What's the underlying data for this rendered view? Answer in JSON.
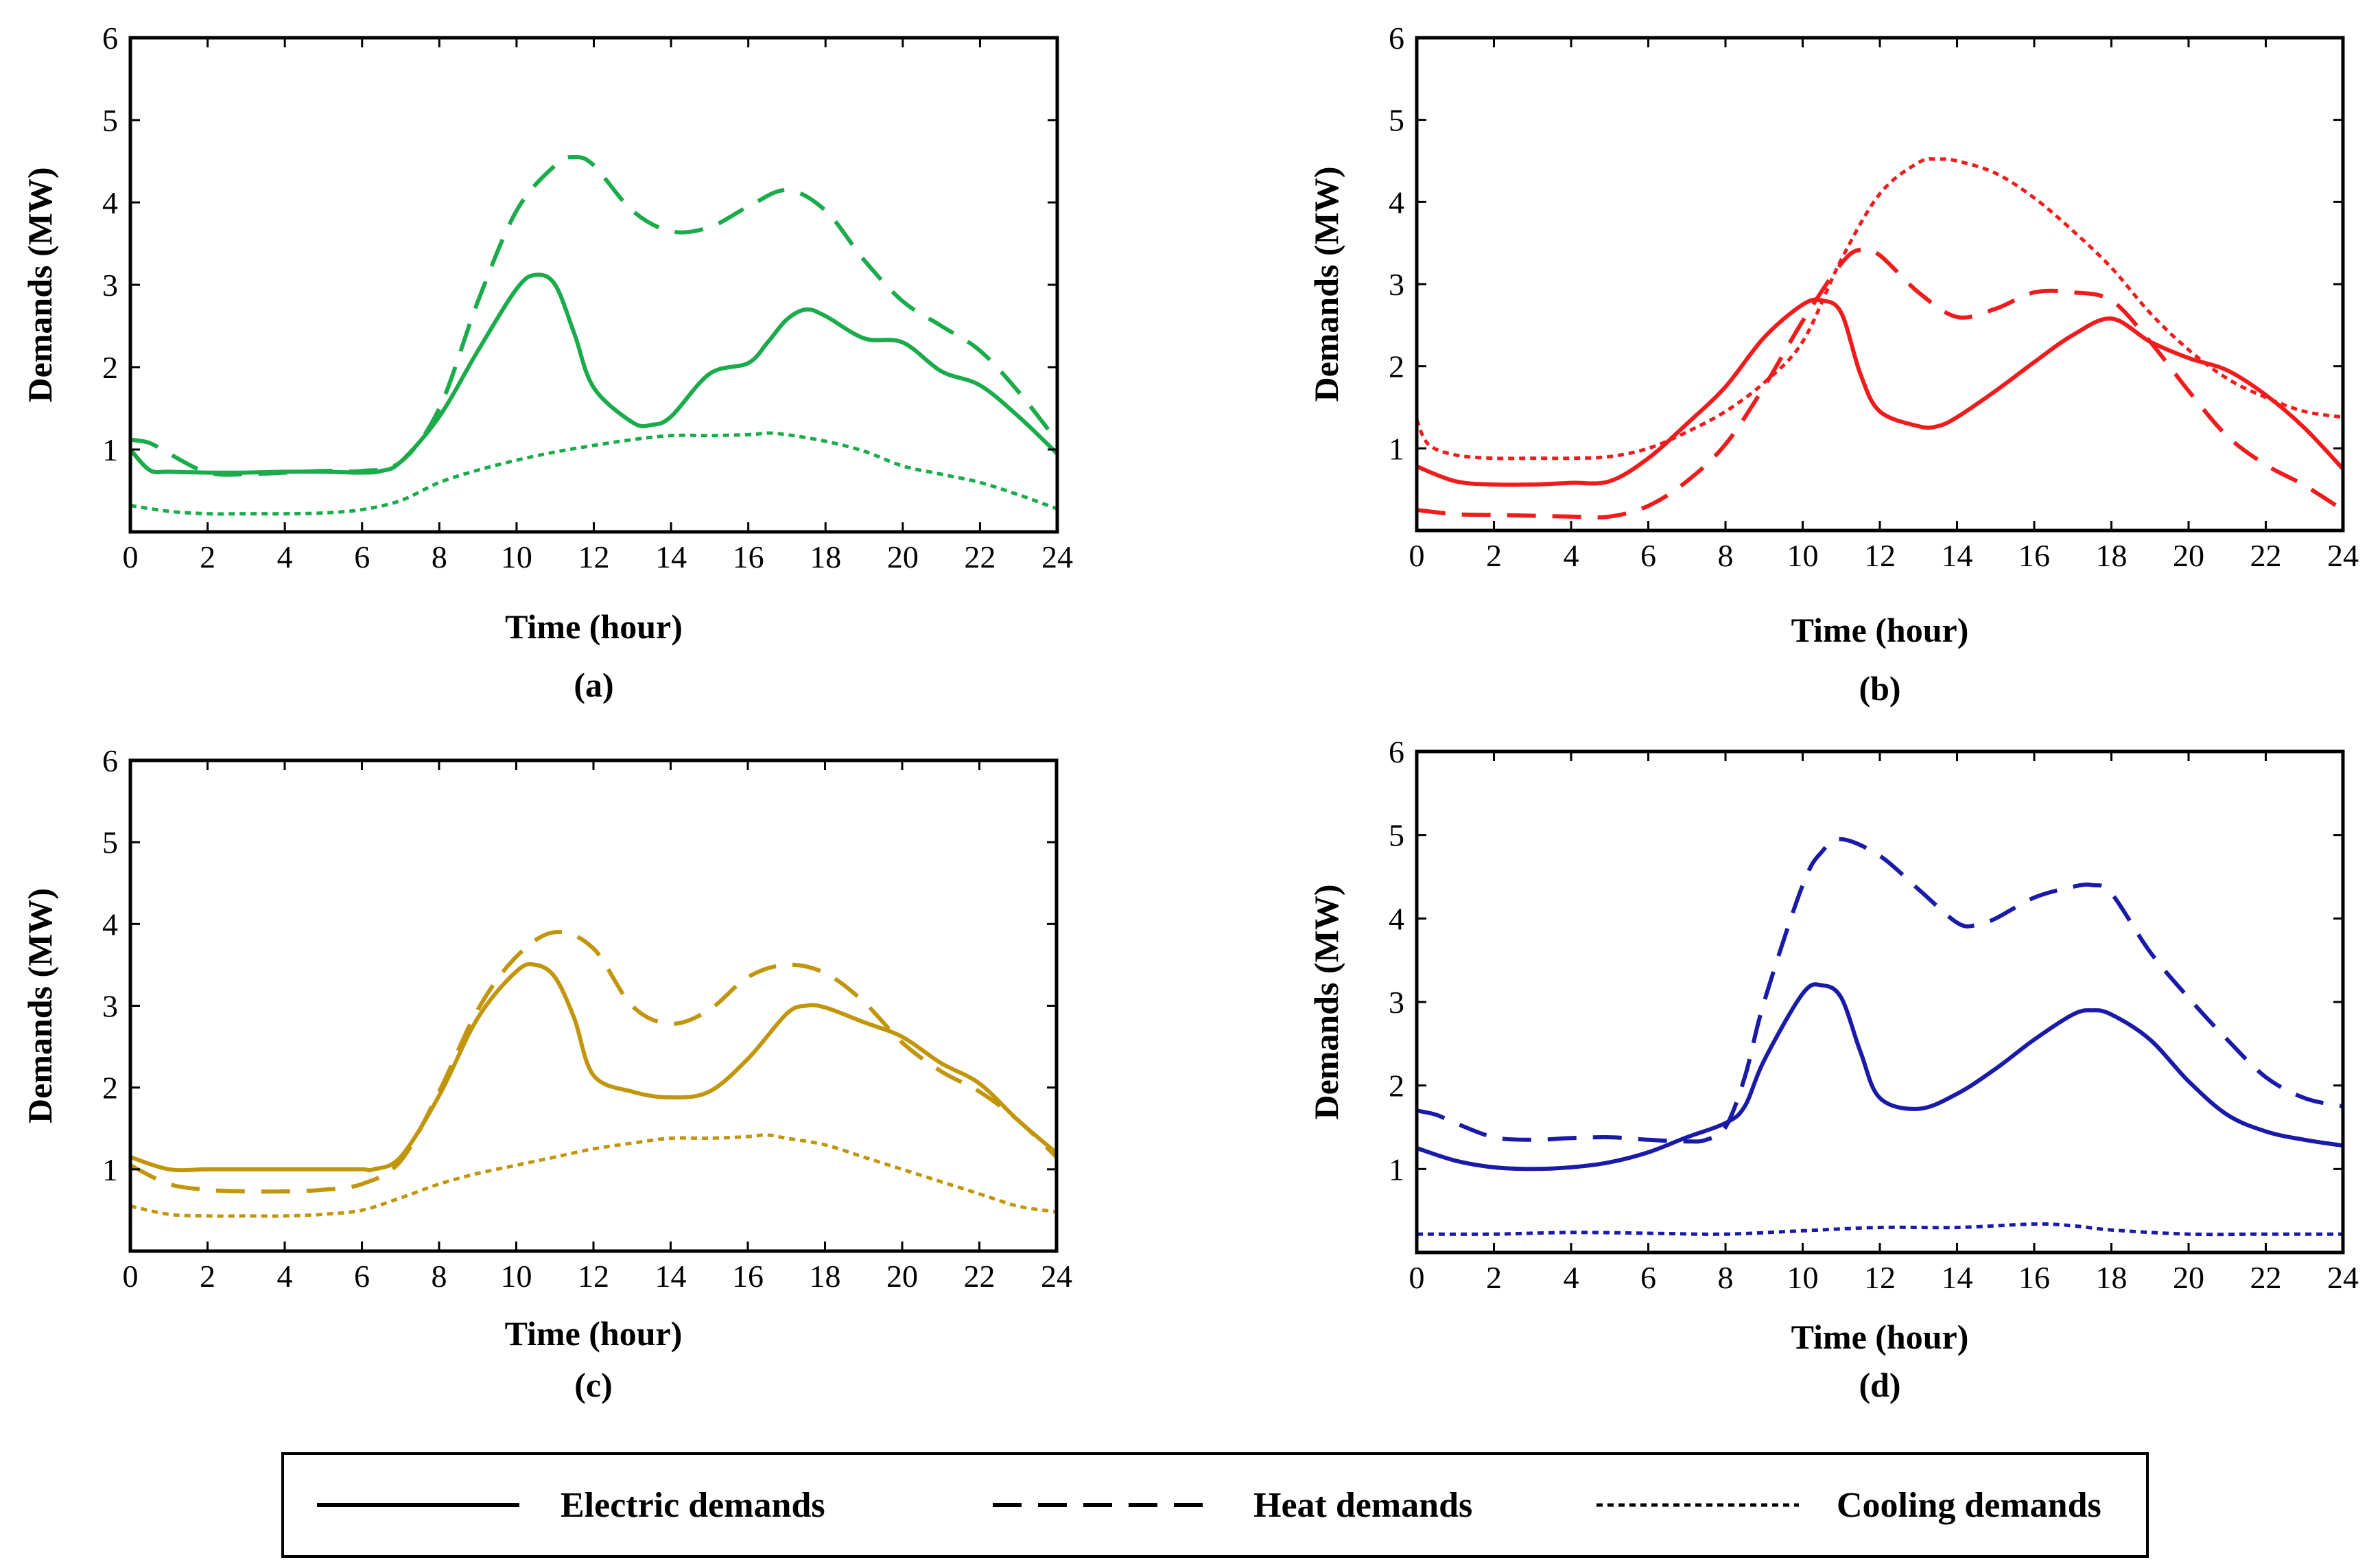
{
  "chart_data": [
    {
      "type": "line",
      "panel_label": "(a)",
      "xlabel": "Time (hour)",
      "ylabel": "Demands (MW)",
      "xlim": [
        0,
        24
      ],
      "ylim": [
        0,
        6
      ],
      "xticks": [
        "0",
        "2",
        "4",
        "6",
        "8",
        "10",
        "12",
        "14",
        "16",
        "18",
        "20",
        "22",
        "24"
      ],
      "yticks": [
        "1",
        "2",
        "3",
        "4",
        "5",
        "6"
      ],
      "color": "#1aab4b",
      "series": [
        {
          "name": "Electric demands",
          "style": "solid",
          "x": [
            0,
            0.5,
            1,
            2,
            3,
            4,
            5,
            6,
            6.5,
            7,
            8,
            9,
            10,
            10.5,
            11,
            11.5,
            12,
            13,
            13.5,
            14,
            15,
            16,
            16.5,
            17,
            17.5,
            18,
            19,
            20,
            21,
            22,
            23,
            24
          ],
          "y": [
            1.0,
            0.75,
            0.73,
            0.72,
            0.72,
            0.73,
            0.73,
            0.72,
            0.74,
            0.85,
            1.4,
            2.2,
            2.95,
            3.12,
            3.0,
            2.4,
            1.75,
            1.33,
            1.3,
            1.4,
            1.92,
            2.05,
            2.3,
            2.58,
            2.7,
            2.62,
            2.35,
            2.3,
            1.95,
            1.78,
            1.4,
            0.95
          ]
        },
        {
          "name": "Heat demands",
          "style": "dashed",
          "x": [
            0,
            0.5,
            1,
            2,
            3,
            4,
            5,
            6,
            7,
            8,
            9,
            10,
            11,
            11.5,
            12,
            13,
            14,
            15,
            16,
            17,
            18,
            19,
            20,
            21,
            22,
            23,
            24
          ],
          "y": [
            1.12,
            1.08,
            0.95,
            0.72,
            0.7,
            0.72,
            0.74,
            0.74,
            0.85,
            1.5,
            2.8,
            3.9,
            4.45,
            4.55,
            4.45,
            3.9,
            3.65,
            3.7,
            3.95,
            4.15,
            3.9,
            3.3,
            2.8,
            2.5,
            2.2,
            1.7,
            1.1
          ]
        },
        {
          "name": "Cooling demands",
          "style": "dotted",
          "x": [
            0,
            1,
            2,
            3,
            4,
            5,
            6,
            7,
            8,
            9,
            10,
            11,
            12,
            13,
            14,
            15,
            16,
            16.5,
            17,
            18,
            19,
            20,
            21,
            22,
            23,
            24
          ],
          "y": [
            0.32,
            0.25,
            0.22,
            0.22,
            0.22,
            0.23,
            0.27,
            0.38,
            0.6,
            0.75,
            0.87,
            0.97,
            1.05,
            1.12,
            1.17,
            1.17,
            1.18,
            1.2,
            1.18,
            1.1,
            0.98,
            0.8,
            0.7,
            0.6,
            0.45,
            0.28
          ]
        }
      ]
    },
    {
      "type": "line",
      "panel_label": "(b)",
      "xlabel": "Time (hour)",
      "ylabel": "Demands (MW)",
      "xlim": [
        0,
        24
      ],
      "ylim": [
        0,
        6
      ],
      "xticks": [
        "0",
        "2",
        "4",
        "6",
        "8",
        "10",
        "12",
        "14",
        "16",
        "18",
        "20",
        "22",
        "24"
      ],
      "yticks": [
        "1",
        "2",
        "3",
        "4",
        "5",
        "6"
      ],
      "color": "#ee1c1c",
      "series": [
        {
          "name": "Electric demands",
          "style": "solid",
          "x": [
            0,
            1,
            2,
            3,
            4,
            5,
            6,
            7,
            8,
            9,
            10,
            10.5,
            11,
            11.5,
            12,
            13,
            13.5,
            14,
            15,
            16,
            17,
            18,
            19,
            20,
            21,
            22,
            23,
            24
          ],
          "y": [
            0.78,
            0.6,
            0.56,
            0.56,
            0.58,
            0.6,
            0.88,
            1.3,
            1.75,
            2.35,
            2.75,
            2.8,
            2.65,
            1.9,
            1.45,
            1.27,
            1.27,
            1.38,
            1.7,
            2.05,
            2.38,
            2.58,
            2.3,
            2.1,
            1.95,
            1.65,
            1.25,
            0.75
          ]
        },
        {
          "name": "Heat demands",
          "style": "dashed",
          "x": [
            0,
            1,
            2,
            3,
            4,
            5,
            6,
            7,
            8,
            9,
            10,
            11,
            11.5,
            12,
            13,
            14,
            15,
            16,
            17,
            18,
            19,
            20,
            21,
            22,
            23,
            24
          ],
          "y": [
            0.25,
            0.2,
            0.19,
            0.18,
            0.17,
            0.17,
            0.3,
            0.6,
            1.05,
            1.75,
            2.55,
            3.25,
            3.42,
            3.35,
            2.9,
            2.6,
            2.7,
            2.9,
            2.9,
            2.8,
            2.3,
            1.7,
            1.15,
            0.8,
            0.55,
            0.25
          ]
        },
        {
          "name": "Cooling demands",
          "style": "dotted",
          "x": [
            0,
            0.3,
            1,
            2,
            3,
            4,
            5,
            6,
            7,
            8,
            9,
            10,
            11,
            12,
            13,
            13.5,
            14,
            15,
            16,
            17,
            18,
            19,
            20,
            21,
            22,
            23,
            24
          ],
          "y": [
            1.35,
            1.05,
            0.92,
            0.88,
            0.88,
            0.88,
            0.9,
            1.0,
            1.2,
            1.45,
            1.8,
            2.3,
            3.3,
            4.1,
            4.48,
            4.52,
            4.5,
            4.35,
            4.05,
            3.65,
            3.2,
            2.65,
            2.2,
            1.85,
            1.62,
            1.45,
            1.38
          ]
        }
      ]
    },
    {
      "type": "line",
      "panel_label": "(c)",
      "xlabel": "Time (hour)",
      "ylabel": "Demands (MW)",
      "xlim": [
        0,
        24
      ],
      "ylim": [
        0,
        6
      ],
      "xticks": [
        "0",
        "2",
        "4",
        "6",
        "8",
        "10",
        "12",
        "14",
        "16",
        "18",
        "20",
        "22",
        "24"
      ],
      "yticks": [
        "1",
        "2",
        "3",
        "4",
        "5",
        "6"
      ],
      "color": "#c2960c",
      "series": [
        {
          "name": "Electric demands",
          "style": "solid",
          "x": [
            0,
            1,
            2,
            3,
            4,
            5,
            6,
            6.3,
            7,
            8,
            9,
            10,
            10.5,
            11,
            11.5,
            12,
            13,
            14,
            15,
            16,
            17,
            17.5,
            18,
            19,
            20,
            21,
            22,
            23,
            24
          ],
          "y": [
            1.15,
            1.0,
            1.0,
            1.0,
            1.0,
            1.0,
            1.0,
            1.0,
            1.15,
            1.9,
            2.85,
            3.42,
            3.5,
            3.35,
            2.85,
            2.15,
            1.95,
            1.88,
            1.95,
            2.35,
            2.9,
            3.0,
            2.98,
            2.8,
            2.62,
            2.3,
            2.05,
            1.6,
            1.2
          ]
        },
        {
          "name": "Heat demands",
          "style": "dashed",
          "x": [
            0,
            1,
            2,
            3,
            4,
            5,
            6,
            7,
            8,
            9,
            10,
            11,
            12,
            13,
            14,
            15,
            16,
            17,
            18,
            19,
            20,
            21,
            22,
            23,
            24
          ],
          "y": [
            1.05,
            0.82,
            0.75,
            0.73,
            0.73,
            0.75,
            0.82,
            1.1,
            1.95,
            2.95,
            3.6,
            3.9,
            3.7,
            3.0,
            2.78,
            2.95,
            3.35,
            3.5,
            3.4,
            3.05,
            2.55,
            2.2,
            1.95,
            1.6,
            1.15
          ]
        },
        {
          "name": "Cooling demands",
          "style": "dotted",
          "x": [
            0,
            1,
            2,
            3,
            4,
            5,
            6,
            7,
            8,
            9,
            10,
            11,
            12,
            13,
            14,
            15,
            16,
            16.5,
            17,
            18,
            19,
            20,
            21,
            22,
            23,
            24
          ],
          "y": [
            0.55,
            0.45,
            0.43,
            0.43,
            0.43,
            0.45,
            0.5,
            0.65,
            0.82,
            0.95,
            1.05,
            1.15,
            1.25,
            1.32,
            1.38,
            1.38,
            1.4,
            1.42,
            1.38,
            1.3,
            1.15,
            1.0,
            0.85,
            0.7,
            0.55,
            0.48
          ]
        }
      ]
    },
    {
      "type": "line",
      "panel_label": "(d)",
      "xlabel": "Time (hour)",
      "ylabel": "Demands (MW)",
      "xlim": [
        0,
        24
      ],
      "ylim": [
        0,
        6
      ],
      "xticks": [
        "0",
        "2",
        "4",
        "6",
        "8",
        "10",
        "12",
        "14",
        "16",
        "18",
        "20",
        "22",
        "24"
      ],
      "yticks": [
        "1",
        "2",
        "3",
        "4",
        "5",
        "6"
      ],
      "color": "#1a1aa8",
      "series": [
        {
          "name": "Electric demands",
          "style": "solid",
          "x": [
            0,
            1,
            2,
            3,
            4,
            5,
            6,
            7,
            8,
            8.5,
            9,
            10,
            10.5,
            11,
            11.5,
            12,
            13,
            14,
            15,
            16,
            17,
            17.5,
            18,
            19,
            20,
            21,
            22,
            23,
            24
          ],
          "y": [
            1.25,
            1.1,
            1.02,
            1.0,
            1.02,
            1.08,
            1.2,
            1.38,
            1.55,
            1.75,
            2.3,
            3.1,
            3.2,
            3.05,
            2.4,
            1.85,
            1.72,
            1.9,
            2.2,
            2.55,
            2.85,
            2.9,
            2.85,
            2.55,
            2.05,
            1.65,
            1.45,
            1.35,
            1.28
          ]
        },
        {
          "name": "Heat demands",
          "style": "dashed",
          "x": [
            0,
            0.5,
            1,
            2,
            3,
            4,
            5,
            6,
            7,
            7.5,
            8,
            8.5,
            9,
            10,
            10.5,
            11,
            12,
            13,
            14,
            14.5,
            15,
            16,
            17,
            17.5,
            18,
            19,
            20,
            21,
            22,
            23,
            24
          ],
          "y": [
            1.7,
            1.65,
            1.55,
            1.38,
            1.35,
            1.37,
            1.38,
            1.35,
            1.33,
            1.35,
            1.5,
            2.1,
            3.0,
            4.4,
            4.8,
            4.95,
            4.75,
            4.35,
            3.95,
            3.92,
            4.0,
            4.25,
            4.38,
            4.4,
            4.3,
            3.6,
            3.05,
            2.55,
            2.1,
            1.85,
            1.75
          ]
        },
        {
          "name": "Cooling demands",
          "style": "dotted",
          "x": [
            0,
            2,
            4,
            6,
            8,
            10,
            12,
            14,
            16,
            17,
            18,
            20,
            22,
            24
          ],
          "y": [
            0.22,
            0.22,
            0.24,
            0.23,
            0.22,
            0.26,
            0.3,
            0.3,
            0.34,
            0.32,
            0.27,
            0.22,
            0.22,
            0.22
          ]
        }
      ]
    }
  ],
  "legend": {
    "entries": [
      {
        "label": "Electric demands",
        "style": "solid"
      },
      {
        "label": "Heat demands",
        "style": "dashed"
      },
      {
        "label": "Cooling demands",
        "style": "dotted"
      }
    ]
  }
}
